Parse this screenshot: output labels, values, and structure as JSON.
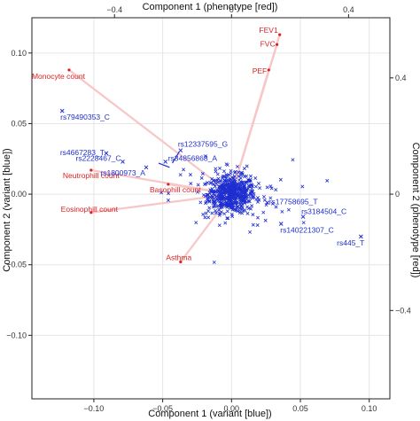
{
  "chart_data": {
    "type": "scatter",
    "colors": {
      "phenotype": "#e02020",
      "variant": "#1f2fd0",
      "spoke": "#f7c6c6",
      "grid": "#e6e6e6",
      "frame": "#222222"
    },
    "axes": {
      "bottom": {
        "label": "Component 1 (variant [blue])",
        "range": [
          -0.145,
          0.115
        ],
        "ticks": [
          -0.1,
          -0.05,
          0.0,
          0.05,
          0.1
        ],
        "tick_labels": [
          "−0.10",
          "−0.05",
          "0.00",
          "0.05",
          "0.10"
        ]
      },
      "left": {
        "label": "Component 2 (variant [blue])",
        "range": [
          -0.145,
          0.125
        ],
        "ticks": [
          -0.1,
          -0.05,
          0.0,
          0.05,
          0.1
        ],
        "tick_labels": [
          "−0.10",
          "−0.05",
          "0.00",
          "0.05",
          "0.10"
        ]
      },
      "top": {
        "label": "Component 1 (phenotype [red])",
        "ticks": [
          -0.4,
          0.0,
          0.4
        ],
        "tick_labels": [
          "−0.4",
          "0",
          "0.4"
        ]
      },
      "right": {
        "label": "Component 2 (phenotype [red])",
        "ticks": [
          0.4,
          0.0,
          -0.4
        ],
        "tick_labels": [
          "0.4",
          "0",
          "−0.4"
        ]
      }
    },
    "phenotypes": [
      {
        "name": "FEV1",
        "x": 0.035,
        "y": 0.113
      },
      {
        "name": "FVC",
        "x": 0.033,
        "y": 0.106
      },
      {
        "name": "PEF",
        "x": 0.027,
        "y": 0.088
      },
      {
        "name": "Monocyte count",
        "x": -0.118,
        "y": 0.088
      },
      {
        "name": "Neutrophill count",
        "x": -0.102,
        "y": 0.017
      },
      {
        "name": "Basophill count",
        "x": -0.046,
        "y": 0.007
      },
      {
        "name": "Eosinophill count",
        "x": -0.102,
        "y": -0.013
      },
      {
        "name": "Asthma",
        "x": -0.037,
        "y": -0.048
      }
    ],
    "labeled_variants": [
      {
        "name": "rs79490353_C",
        "x": -0.123,
        "y": 0.059
      },
      {
        "name": "rs4667283_T",
        "x": -0.091,
        "y": 0.029
      },
      {
        "name": "rs12337595_G",
        "x": -0.037,
        "y": 0.031
      },
      {
        "name": "rs2228467_C",
        "x": -0.079,
        "y": 0.023
      },
      {
        "name": "rs34856868_A",
        "x": -0.048,
        "y": 0.023
      },
      {
        "name": "rs1800973_A",
        "x": -0.062,
        "y": 0.019
      },
      {
        "name": "rs17758695_T",
        "x": 0.026,
        "y": -0.006
      },
      {
        "name": "rs3184504_C",
        "x": 0.052,
        "y": -0.016
      },
      {
        "name": "rs140221307_C",
        "x": 0.036,
        "y": -0.021
      },
      {
        "name": "rs445_T",
        "x": 0.094,
        "y": -0.03
      }
    ],
    "variant_cloud_center": [
      0.0,
      0.0
    ]
  }
}
